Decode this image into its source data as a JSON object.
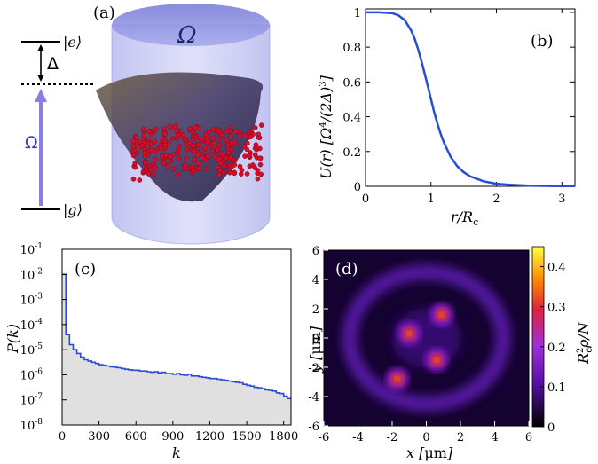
{
  "chart_data": [
    {
      "panel": "(a)",
      "type": "diagram",
      "level_labels": {
        "excited": "|e⟩",
        "ground": "|g⟩",
        "detuning": "Δ",
        "rabi": "Ω",
        "dressing": "Ω"
      },
      "colors": {
        "cylinder": "#8f93e6",
        "atoms": "#d0102a",
        "rabi_arrow": "#8a7fe0"
      }
    },
    {
      "panel": "(b)",
      "type": "line",
      "xlabel": "r/R_c",
      "ylabel": "U(r) [Ω⁴/(2Δ)³]",
      "xlim": [
        0,
        3.2
      ],
      "ylim": [
        0,
        1.02
      ],
      "x_ticks": [
        "0",
        "1",
        "2",
        "3"
      ],
      "y_ticks": [
        "0",
        "0.2",
        "0.4",
        "0.6",
        "0.8",
        "1"
      ],
      "x": [
        0,
        0.2,
        0.4,
        0.5,
        0.6,
        0.7,
        0.75,
        0.8,
        0.85,
        0.9,
        0.95,
        1.0,
        1.05,
        1.1,
        1.15,
        1.2,
        1.3,
        1.4,
        1.5,
        1.6,
        1.8,
        2.0,
        2.2,
        2.5,
        2.8,
        3.2
      ],
      "y": [
        1.0,
        1.0,
        0.996,
        0.984,
        0.955,
        0.894,
        0.849,
        0.792,
        0.725,
        0.653,
        0.578,
        0.5,
        0.425,
        0.359,
        0.3,
        0.249,
        0.17,
        0.116,
        0.081,
        0.057,
        0.029,
        0.015,
        0.009,
        0.004,
        0.002,
        0.001
      ],
      "color": "#2a4bd7"
    },
    {
      "panel": "(c)",
      "type": "bar",
      "xlabel": "k",
      "ylabel": "P(k)",
      "scale_y": "log",
      "xlim": [
        0,
        1860
      ],
      "ylim_exp": [
        -8,
        -1
      ],
      "x_ticks": [
        "0",
        "300",
        "600",
        "900",
        "1200",
        "1500",
        "1800"
      ],
      "y_ticks_exp": [
        "-8",
        "-7",
        "-6",
        "-5",
        "-4",
        "-3",
        "-2",
        "-1"
      ],
      "bin_width": 30,
      "log10_values": [
        -2.0,
        -4.4,
        -4.8,
        -5.0,
        -5.15,
        -5.3,
        -5.4,
        -5.45,
        -5.5,
        -5.55,
        -5.6,
        -5.62,
        -5.65,
        -5.68,
        -5.7,
        -5.72,
        -5.75,
        -5.78,
        -5.8,
        -5.82,
        -5.82,
        -5.85,
        -5.85,
        -5.88,
        -5.9,
        -5.88,
        -5.92,
        -5.9,
        -5.95,
        -5.95,
        -5.98,
        -5.95,
        -6.0,
        -6.02,
        -5.98,
        -6.05,
        -6.05,
        -6.08,
        -6.1,
        -6.12,
        -6.15,
        -6.15,
        -6.18,
        -6.2,
        -6.22,
        -6.25,
        -6.28,
        -6.3,
        -6.32,
        -6.38,
        -6.42,
        -6.45,
        -6.5,
        -6.52,
        -6.55,
        -6.6,
        -6.62,
        -6.65,
        -6.72,
        -6.75,
        -6.85,
        -6.95
      ],
      "color": "#2a4bd7",
      "fill": "#e0e0e0"
    },
    {
      "panel": "(d)",
      "type": "heatmap",
      "xlabel": "x [μm]",
      "ylabel": "y [μm]",
      "colorbar_label": "R_c² ρ/N",
      "xlim": [
        -6,
        6
      ],
      "ylim": [
        -6,
        6
      ],
      "x_ticks": [
        "-6",
        "-4",
        "-2",
        "0",
        "2",
        "4",
        "6"
      ],
      "y_ticks": [
        "-6",
        "-4",
        "-2",
        "0",
        "2",
        "4",
        "6"
      ],
      "colorbar_ticks": [
        "0",
        "0.1",
        "0.2",
        "0.3",
        "0.4"
      ],
      "clim": [
        0,
        0.45
      ],
      "peaks": [
        {
          "x": -1.0,
          "y": 0.3,
          "v": 0.4
        },
        {
          "x": 0.9,
          "y": 1.6,
          "v": 0.42
        },
        {
          "x": 0.6,
          "y": -1.5,
          "v": 0.4
        },
        {
          "x": -1.7,
          "y": -2.8,
          "v": 0.32
        }
      ],
      "ring_radius": 4.5
    }
  ]
}
